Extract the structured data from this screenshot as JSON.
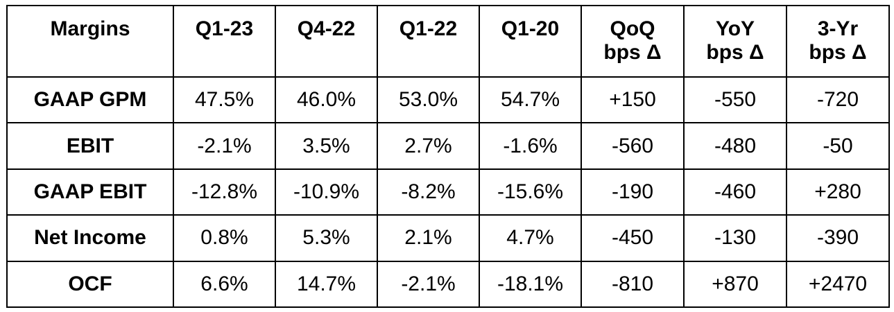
{
  "table": {
    "headers": [
      [
        "Margins"
      ],
      [
        "Q1-23"
      ],
      [
        "Q4-22"
      ],
      [
        "Q1-22"
      ],
      [
        "Q1-20"
      ],
      [
        "QoQ",
        "bps Δ"
      ],
      [
        "YoY",
        "bps Δ"
      ],
      [
        "3-Yr",
        "bps Δ"
      ]
    ],
    "rows": [
      {
        "label": "GAAP GPM",
        "cells": [
          "47.5%",
          "46.0%",
          "53.0%",
          "54.7%",
          "+150",
          "-550",
          "-720"
        ]
      },
      {
        "label": "EBIT",
        "cells": [
          "-2.1%",
          "3.5%",
          "2.7%",
          "-1.6%",
          "-560",
          "-480",
          "-50"
        ]
      },
      {
        "label": "GAAP EBIT",
        "cells": [
          "-12.8%",
          "-10.9%",
          "-8.2%",
          "-15.6%",
          "-190",
          "-460",
          "+280"
        ]
      },
      {
        "label": "Net Income",
        "cells": [
          "0.8%",
          "5.3%",
          "2.1%",
          "4.7%",
          "-450",
          "-130",
          "-390"
        ]
      },
      {
        "label": "OCF",
        "cells": [
          "6.6%",
          "14.7%",
          "-2.1%",
          "-18.1%",
          "-810",
          "+870",
          "+2470"
        ]
      }
    ]
  }
}
